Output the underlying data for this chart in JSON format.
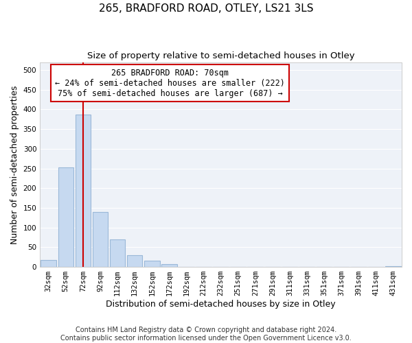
{
  "title": "265, BRADFORD ROAD, OTLEY, LS21 3LS",
  "subtitle": "Size of property relative to semi-detached houses in Otley",
  "xlabel": "Distribution of semi-detached houses by size in Otley",
  "ylabel": "Number of semi-detached properties",
  "categories": [
    "32sqm",
    "52sqm",
    "72sqm",
    "92sqm",
    "112sqm",
    "132sqm",
    "152sqm",
    "172sqm",
    "192sqm",
    "212sqm",
    "232sqm",
    "251sqm",
    "271sqm",
    "291sqm",
    "311sqm",
    "331sqm",
    "351sqm",
    "371sqm",
    "391sqm",
    "411sqm",
    "431sqm"
  ],
  "values": [
    17,
    252,
    387,
    140,
    70,
    30,
    15,
    7,
    0,
    0,
    0,
    0,
    0,
    0,
    0,
    0,
    0,
    0,
    0,
    0,
    2
  ],
  "bar_color": "#c6d9f0",
  "bar_edge_color": "#9ab8d8",
  "vline_x_index": 2,
  "vline_color": "#cc0000",
  "annotation_line1": "265 BRADFORD ROAD: 70sqm",
  "annotation_line2": "← 24% of semi-detached houses are smaller (222)",
  "annotation_line3": "75% of semi-detached houses are larger (687) →",
  "annotation_box_color": "#ffffff",
  "annotation_box_edge_color": "#cc0000",
  "ylim": [
    0,
    520
  ],
  "yticks": [
    0,
    50,
    100,
    150,
    200,
    250,
    300,
    350,
    400,
    450,
    500
  ],
  "footer_line1": "Contains HM Land Registry data © Crown copyright and database right 2024.",
  "footer_line2": "Contains public sector information licensed under the Open Government Licence v3.0.",
  "bg_color": "#ffffff",
  "plot_bg_color": "#eef2f8",
  "grid_color": "#ffffff",
  "title_fontsize": 11,
  "subtitle_fontsize": 9.5,
  "axis_label_fontsize": 9,
  "tick_fontsize": 7.5,
  "annotation_fontsize": 8.5,
  "footer_fontsize": 7
}
